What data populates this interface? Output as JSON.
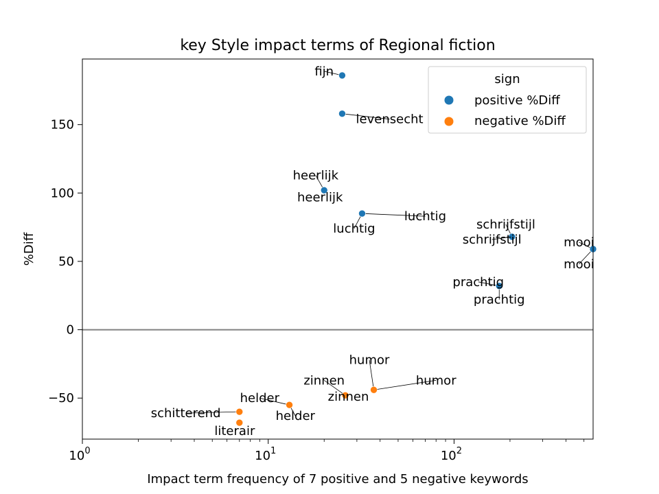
{
  "chart_data": {
    "type": "scatter",
    "title": "key Style impact terms of Regional fiction",
    "xlabel": "Impact term frequency of 7 positive and 5 negative keywords",
    "ylabel": "%Diff",
    "xscale": "log",
    "xlim": [
      1,
      560
    ],
    "ylim": [
      -80,
      198
    ],
    "x_ticks": [
      {
        "value": 1,
        "base": "10",
        "exp": "0"
      },
      {
        "value": 10,
        "base": "10",
        "exp": "1"
      },
      {
        "value": 100,
        "base": "10",
        "exp": "2"
      }
    ],
    "y_ticks": [
      {
        "value": -50,
        "label": "−50"
      },
      {
        "value": 0,
        "label": "0"
      },
      {
        "value": 50,
        "label": "50"
      },
      {
        "value": 100,
        "label": "100"
      },
      {
        "value": 150,
        "label": "150"
      }
    ],
    "grid": false,
    "reference_line_y": 0,
    "legend": {
      "title": "sign",
      "placement": "upper right",
      "entries": [
        {
          "label": "positive %Diff",
          "color": "#1f77b4"
        },
        {
          "label": "negative %Diff",
          "color": "#ff7f0e"
        }
      ]
    },
    "series": [
      {
        "name": "positive %Diff",
        "color": "#1f77b4",
        "points": [
          {
            "term": "fijn",
            "x": 25,
            "y": 186
          },
          {
            "term": "levensecht",
            "x": 25,
            "y": 158
          },
          {
            "term": "heerlijk",
            "x": 20,
            "y": 102
          },
          {
            "term": "luchtig",
            "x": 32,
            "y": 85
          },
          {
            "term": "schrijfstijl",
            "x": 205,
            "y": 68
          },
          {
            "term": "mooi",
            "x": 560,
            "y": 59
          },
          {
            "term": "prachtig",
            "x": 175,
            "y": 32
          }
        ]
      },
      {
        "name": "negative %Diff",
        "color": "#ff7f0e",
        "points": [
          {
            "term": "humor",
            "x": 37,
            "y": -44
          },
          {
            "term": "zinnen",
            "x": 26,
            "y": -48
          },
          {
            "term": "helder",
            "x": 13,
            "y": -55
          },
          {
            "term": "schitterend",
            "x": 7,
            "y": -60
          },
          {
            "term": "literair",
            "x": 7,
            "y": -68
          }
        ]
      }
    ],
    "annotations": [
      {
        "text": "fijn",
        "x": 25,
        "y": 186,
        "lx": 20,
        "ly": 189
      },
      {
        "text": "levensecht",
        "x": 25,
        "y": 158,
        "lx": 45,
        "ly": 154
      },
      {
        "text": "heerlijk",
        "x": 20,
        "y": 102,
        "lx": 18,
        "ly": 113
      },
      {
        "text": "heerlijk",
        "x": 20,
        "y": 102,
        "lx": 19,
        "ly": 97
      },
      {
        "text": "luchtig",
        "x": 32,
        "y": 85,
        "lx": 70,
        "ly": 83
      },
      {
        "text": "luchtig",
        "x": 32,
        "y": 85,
        "lx": 29,
        "ly": 74
      },
      {
        "text": "schrijfstijl",
        "x": 205,
        "y": 68,
        "lx": 190,
        "ly": 77
      },
      {
        "text": "schrijfstijl",
        "x": 205,
        "y": 68,
        "lx": 160,
        "ly": 66
      },
      {
        "text": "mooi",
        "x": 560,
        "y": 59,
        "lx": 470,
        "ly": 64
      },
      {
        "text": "mooi",
        "x": 560,
        "y": 59,
        "lx": 470,
        "ly": 48
      },
      {
        "text": "prachtig",
        "x": 175,
        "y": 32,
        "lx": 135,
        "ly": 35
      },
      {
        "text": "prachtig",
        "x": 175,
        "y": 32,
        "lx": 175,
        "ly": 22
      },
      {
        "text": "humor",
        "x": 37,
        "y": -44,
        "lx": 35,
        "ly": -22
      },
      {
        "text": "humor",
        "x": 37,
        "y": -44,
        "lx": 80,
        "ly": -37
      },
      {
        "text": "zinnen",
        "x": 26,
        "y": -48,
        "lx": 20,
        "ly": -37
      },
      {
        "text": "zinnen",
        "x": 26,
        "y": -48,
        "lx": 27,
        "ly": -49
      },
      {
        "text": "helder",
        "x": 13,
        "y": -55,
        "lx": 9,
        "ly": -50
      },
      {
        "text": "helder",
        "x": 13,
        "y": -55,
        "lx": 14,
        "ly": -63
      },
      {
        "text": "schitterend",
        "x": 7,
        "y": -60,
        "lx": 3.6,
        "ly": -61
      },
      {
        "text": "literair",
        "x": 7,
        "y": -68,
        "lx": 6.6,
        "ly": -74
      }
    ]
  }
}
